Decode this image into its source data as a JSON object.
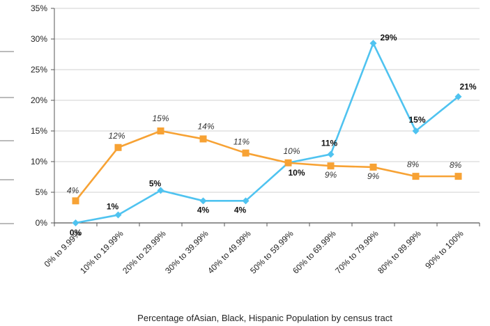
{
  "chart_data": {
    "type": "line",
    "title": "",
    "xlabel": "Percentage ofAsian, Black, Hispanic Population by census tract",
    "ylabel": "",
    "ylim": [
      0,
      35
    ],
    "yticks": [
      "0%",
      "5%",
      "10%",
      "15%",
      "20%",
      "25%",
      "30%",
      "35%"
    ],
    "categories": [
      "0% to 9.99%",
      "10% to 19.99%",
      "20% to 29.99%",
      "30% to 39.99%",
      "40% to 49.99%",
      "50% to 59.99%",
      "60% to 69.99%",
      "70% to 79.99%",
      "80% to 89.99%",
      "90% to 100%"
    ],
    "grid": true,
    "legend": "none",
    "series": [
      {
        "color": "#4fc3f0",
        "marker": "diamond",
        "values": [
          0,
          1.3,
          5.3,
          3.6,
          3.6,
          9.8,
          11.2,
          29.3,
          15.0,
          20.6
        ],
        "labels": [
          "0%",
          "1%",
          "5%",
          "4%",
          "4%",
          "10%",
          "11%",
          "29%",
          "15%",
          "21%"
        ],
        "label_style": "bold"
      },
      {
        "color": "#f7a234",
        "marker": "square",
        "values": [
          3.6,
          12.3,
          15.0,
          13.7,
          11.4,
          9.8,
          9.3,
          9.1,
          7.6,
          7.6
        ],
        "labels": [
          "4%",
          "12%",
          "15%",
          "14%",
          "11%",
          "10%",
          "9%",
          "9%",
          "8%",
          "8%"
        ],
        "label_style": "italic"
      }
    ]
  }
}
